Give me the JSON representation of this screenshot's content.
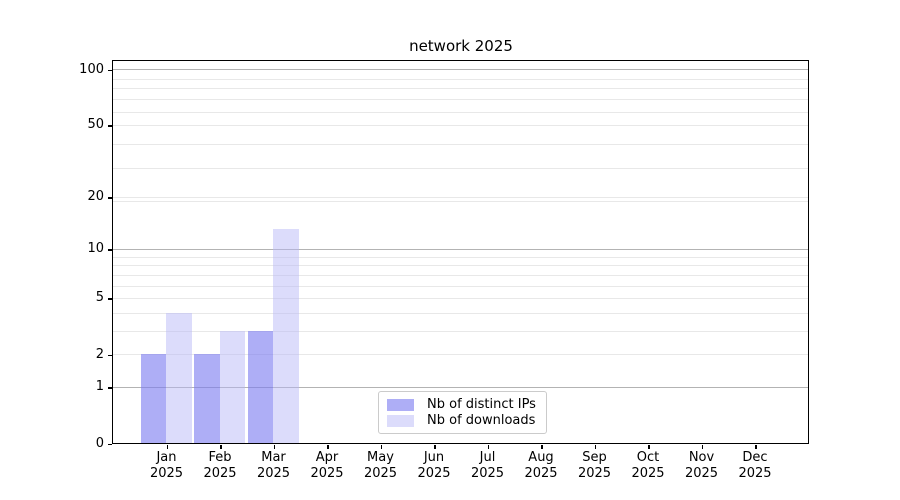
{
  "title": "network 2025",
  "chart_data": {
    "type": "bar",
    "title": "network 2025",
    "categories": [
      "Jan",
      "Feb",
      "Mar",
      "Apr",
      "May",
      "Jun",
      "Jul",
      "Aug",
      "Sep",
      "Oct",
      "Nov",
      "Dec"
    ],
    "category_year": "2025",
    "series": [
      {
        "name": "Nb of distinct IPs",
        "color": "rgba(124,124,240,0.62)",
        "values": [
          2,
          2,
          3,
          0,
          0,
          0,
          0,
          0,
          0,
          0,
          0,
          0
        ]
      },
      {
        "name": "Nb of downloads",
        "color": "rgba(180,180,246,0.47)",
        "values": [
          4,
          3,
          13,
          0,
          0,
          0,
          0,
          0,
          0,
          0,
          0,
          0
        ]
      }
    ],
    "y_axis": {
      "scale": "log10(1+y)",
      "tick_values": [
        0,
        1,
        2,
        5,
        10,
        20,
        50,
        100
      ],
      "tick_labels": [
        "0",
        "1",
        "2",
        "5",
        "10",
        "20",
        "50",
        "100"
      ],
      "major_grid_values": [
        1,
        10,
        100
      ],
      "minor_grid_values": [
        2,
        3,
        4,
        5,
        6,
        7,
        8,
        9,
        19,
        20,
        29,
        39,
        50,
        59,
        69,
        79,
        89
      ],
      "ylim": [
        0,
        111
      ]
    },
    "grid": true,
    "legend_position": "lower center (inside axes)"
  },
  "colors": {
    "grid_major": "#b3b3b3",
    "grid_minor": "#e8e8e8",
    "axis_spine": "#000000",
    "background": "#ffffff",
    "bar_distinct_ips": "#adadf3",
    "bar_downloads": "#ddddfb"
  }
}
